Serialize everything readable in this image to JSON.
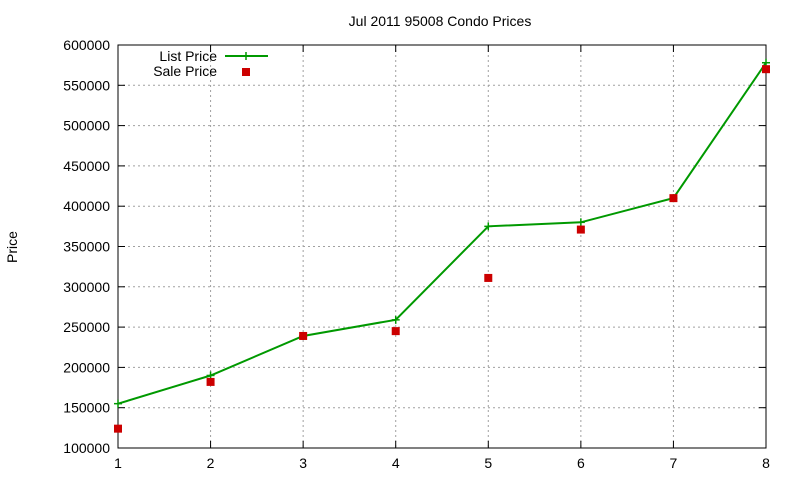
{
  "chart_data": {
    "type": "line",
    "title": "Jul 2011 95008 Condo Prices",
    "xlabel": "",
    "ylabel": "Price",
    "xlim": [
      1,
      8
    ],
    "ylim": [
      100000,
      600000
    ],
    "xticks": [
      1,
      2,
      3,
      4,
      5,
      6,
      7,
      8
    ],
    "yticks": [
      100000,
      150000,
      200000,
      250000,
      300000,
      350000,
      400000,
      450000,
      500000,
      550000,
      600000
    ],
    "grid": true,
    "legend_position": "top-left",
    "series": [
      {
        "name": "List Price",
        "style": "line-with-plus-markers",
        "color": "#009900",
        "x": [
          1,
          2,
          3,
          4,
          5,
          6,
          7,
          8
        ],
        "y": [
          155000,
          190000,
          239000,
          259000,
          375000,
          380000,
          410000,
          578000
        ]
      },
      {
        "name": "Sale Price",
        "style": "square-markers",
        "color": "#cc0000",
        "x": [
          1,
          2,
          3,
          4,
          5,
          6,
          7,
          8
        ],
        "y": [
          124000,
          182000,
          239000,
          245000,
          311000,
          371000,
          410000,
          570000
        ]
      }
    ]
  }
}
